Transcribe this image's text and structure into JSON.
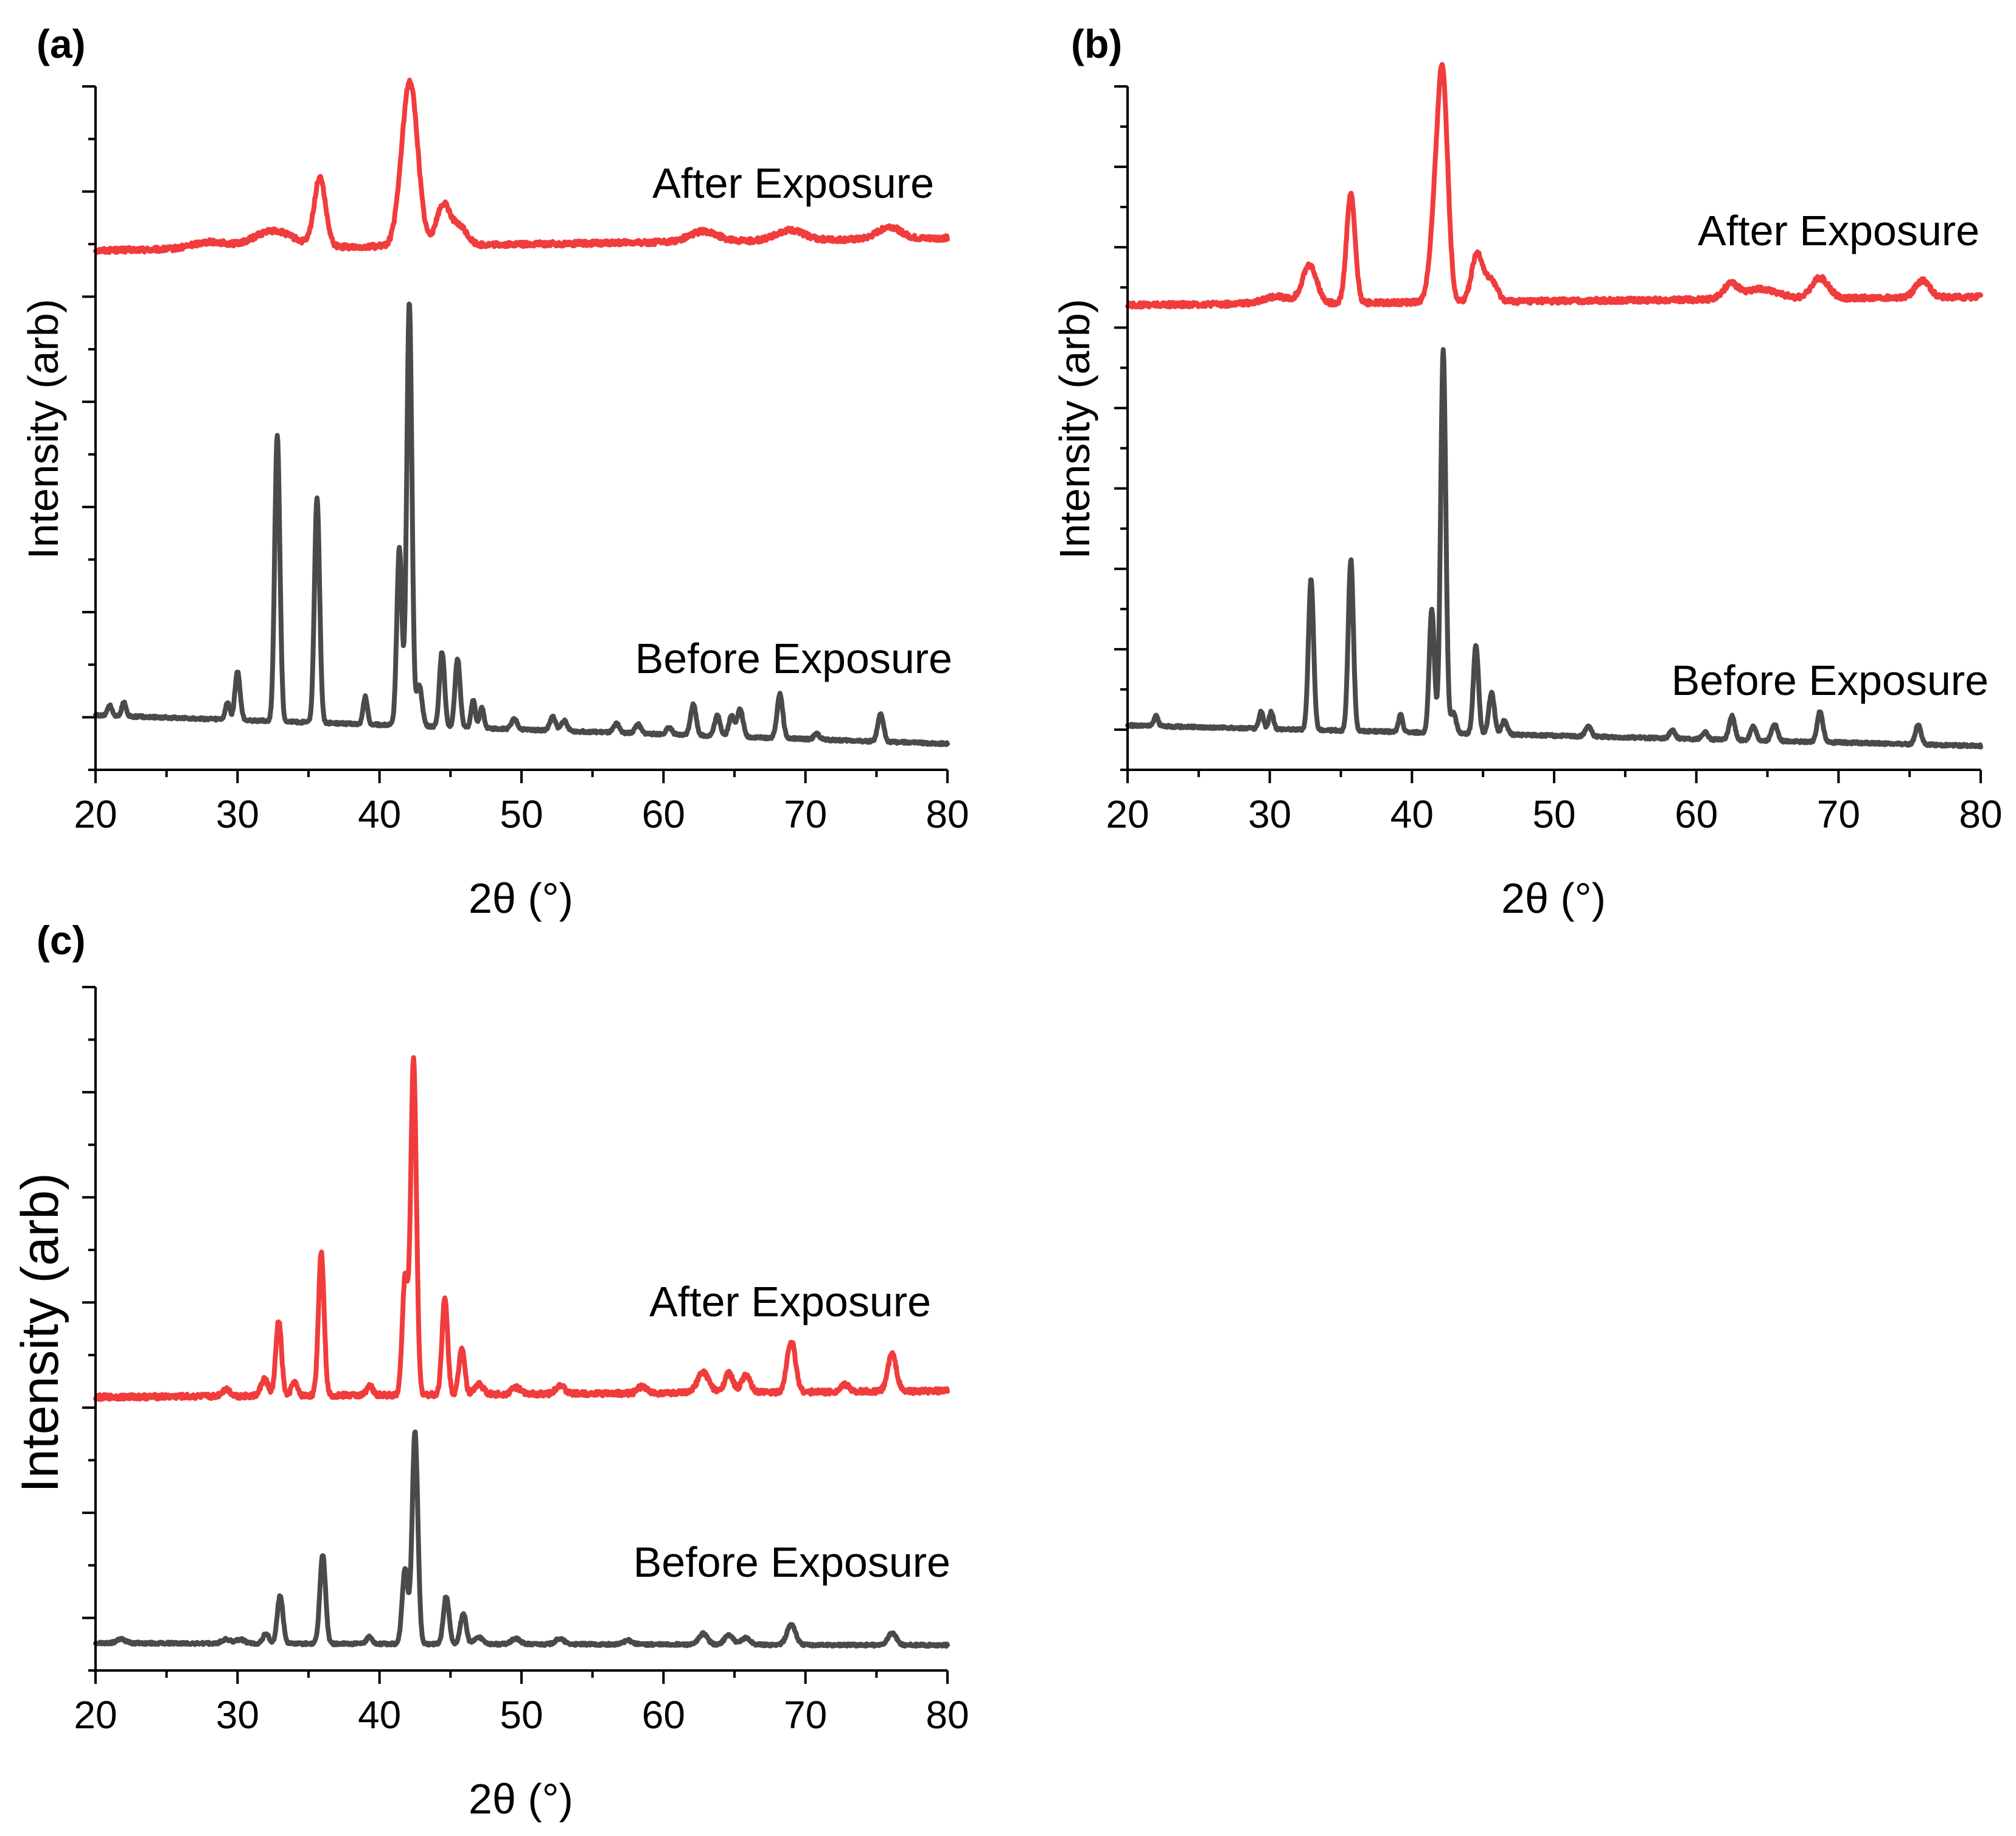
{
  "chart_data": [
    {
      "panel": "(a)",
      "type": "line",
      "xlabel": "2θ (°)",
      "ylabel": "Intensity (arb)",
      "xlim": [
        20,
        80
      ],
      "ylim": [
        0,
        100
      ],
      "xticks": [
        "20",
        "30",
        "40",
        "50",
        "60",
        "70",
        "80"
      ],
      "series": [
        {
          "name": "After Exposure",
          "color": "#f03c3c",
          "offset": 76,
          "slope": 0.03,
          "peaks": [
            [
              28,
              1.0,
              1.2
            ],
            [
              32.5,
              2.5,
              1.4
            ],
            [
              35.8,
              10,
              0.4
            ],
            [
              41.8,
              10,
              0.5
            ],
            [
              42.3,
              17,
              0.5
            ],
            [
              44.5,
              6,
              0.5
            ],
            [
              45.7,
              2.5,
              0.5
            ],
            [
              62.8,
              1.5,
              1.0
            ],
            [
              68.9,
              1.5,
              1.0
            ],
            [
              75.9,
              1.8,
              0.8
            ]
          ]
        },
        {
          "name": "Before Exposure",
          "color": "#4a4a4a",
          "offset": 8,
          "slope": -0.07,
          "peaks": [
            [
              21.0,
              1.5,
              0.15
            ],
            [
              22.0,
              2.0,
              0.15
            ],
            [
              29.3,
              2.5,
              0.15
            ],
            [
              30.0,
              7,
              0.18
            ],
            [
              32.8,
              42,
              0.18
            ],
            [
              35.6,
              33,
              0.18
            ],
            [
              39.0,
              4,
              0.15
            ],
            [
              41.4,
              26,
              0.18
            ],
            [
              42.1,
              62,
              0.18
            ],
            [
              42.8,
              6,
              0.2
            ],
            [
              44.4,
              11,
              0.18
            ],
            [
              45.5,
              10,
              0.18
            ],
            [
              46.6,
              4,
              0.15
            ],
            [
              47.2,
              3,
              0.15
            ],
            [
              49.5,
              1.5,
              0.2
            ],
            [
              52.2,
              2.0,
              0.2
            ],
            [
              53.0,
              1.5,
              0.2
            ],
            [
              56.7,
              1.3,
              0.2
            ],
            [
              58.2,
              1.3,
              0.2
            ],
            [
              60.4,
              1.0,
              0.2
            ],
            [
              62.1,
              4.5,
              0.2
            ],
            [
              63.8,
              3.0,
              0.2
            ],
            [
              64.8,
              3.0,
              0.2
            ],
            [
              65.4,
              4.0,
              0.2
            ],
            [
              68.2,
              6.5,
              0.2
            ],
            [
              70.8,
              0.8,
              0.2
            ],
            [
              75.3,
              4.0,
              0.2
            ]
          ]
        }
      ]
    },
    {
      "panel": "(b)",
      "type": "line",
      "xlabel": "2θ (°)",
      "ylabel": "Intensity (arb)",
      "xlim": [
        20,
        80
      ],
      "ylim": [
        0,
        100
      ],
      "xticks": [
        "20",
        "30",
        "40",
        "50",
        "60",
        "70",
        "80"
      ],
      "series": [
        {
          "name": "After Exposure",
          "color": "#f03c3c",
          "offset": 68,
          "slope": 0.02,
          "peaks": [
            [
              30.5,
              1.0,
              1.0
            ],
            [
              32.8,
              5.5,
              0.5
            ],
            [
              35.7,
              16,
              0.3
            ],
            [
              41.7,
              13,
              0.4
            ],
            [
              42.2,
              28,
              0.35
            ],
            [
              44.6,
              7,
              0.4
            ],
            [
              45.6,
              3.0,
              0.4
            ],
            [
              62.4,
              2.0,
              0.5
            ],
            [
              64.5,
              1.5,
              1.2
            ],
            [
              68.7,
              3.0,
              0.6
            ],
            [
              75.9,
              2.5,
              0.5
            ]
          ]
        },
        {
          "name": "Before Exposure",
          "color": "#4a4a4a",
          "offset": 6.5,
          "slope": -0.05,
          "peaks": [
            [
              22.0,
              1.5,
              0.15
            ],
            [
              29.4,
              2.5,
              0.15
            ],
            [
              30.1,
              2.5,
              0.15
            ],
            [
              32.9,
              22,
              0.18
            ],
            [
              35.7,
              25,
              0.18
            ],
            [
              39.2,
              2.5,
              0.15
            ],
            [
              41.4,
              18,
              0.18
            ],
            [
              42.2,
              56,
              0.18
            ],
            [
              42.9,
              3.0,
              0.2
            ],
            [
              44.5,
              13,
              0.18
            ],
            [
              45.6,
              6.0,
              0.2
            ],
            [
              46.5,
              2.0,
              0.2
            ],
            [
              52.4,
              1.5,
              0.2
            ],
            [
              58.3,
              1.2,
              0.2
            ],
            [
              60.6,
              1.0,
              0.2
            ],
            [
              62.5,
              3.5,
              0.2
            ],
            [
              64.0,
              2.0,
              0.2
            ],
            [
              65.5,
              2.5,
              0.2
            ],
            [
              68.7,
              4.5,
              0.2
            ],
            [
              75.6,
              2.8,
              0.2
            ]
          ]
        }
      ]
    },
    {
      "panel": "(c)",
      "type": "line",
      "xlabel": "2θ (°)",
      "ylabel": "Intensity (arb)",
      "xlim": [
        20,
        80
      ],
      "ylim": [
        0,
        100
      ],
      "xticks": [
        "20",
        "30",
        "40",
        "50",
        "60",
        "70",
        "80"
      ],
      "series": [
        {
          "name": "After Exposure",
          "color": "#f03c3c",
          "offset": 40,
          "slope": 0.015,
          "peaks": [
            [
              29.2,
              1.0,
              0.3
            ],
            [
              31.9,
              2.5,
              0.25
            ],
            [
              32.9,
              11,
              0.2
            ],
            [
              34.0,
              2.0,
              0.2
            ],
            [
              35.9,
              21,
              0.2
            ],
            [
              39.3,
              1.5,
              0.2
            ],
            [
              41.8,
              17,
              0.2
            ],
            [
              42.4,
              49,
              0.2
            ],
            [
              44.6,
              14,
              0.2
            ],
            [
              45.8,
              7,
              0.2
            ],
            [
              47.0,
              1.5,
              0.3
            ],
            [
              49.6,
              1.0,
              0.3
            ],
            [
              52.7,
              1.3,
              0.3
            ],
            [
              58.5,
              1.0,
              0.3
            ],
            [
              62.8,
              3.0,
              0.4
            ],
            [
              64.6,
              2.8,
              0.3
            ],
            [
              65.8,
              2.5,
              0.3
            ],
            [
              69.0,
              7.5,
              0.3
            ],
            [
              72.8,
              1.0,
              0.3
            ],
            [
              76.1,
              5.5,
              0.3
            ]
          ]
        },
        {
          "name": "Before Exposure",
          "color": "#4a4a4a",
          "offset": 4,
          "slope": -0.005,
          "peaks": [
            [
              21.8,
              0.6,
              0.3
            ],
            [
              29.2,
              0.6,
              0.3
            ],
            [
              30.2,
              0.6,
              0.3
            ],
            [
              32.0,
              1.5,
              0.2
            ],
            [
              33.0,
              7.0,
              0.2
            ],
            [
              36.0,
              13,
              0.2
            ],
            [
              39.3,
              1.0,
              0.2
            ],
            [
              41.8,
              11,
              0.2
            ],
            [
              42.5,
              31,
              0.2
            ],
            [
              44.7,
              7.0,
              0.2
            ],
            [
              45.9,
              4.5,
              0.2
            ],
            [
              47.0,
              1.0,
              0.3
            ],
            [
              49.6,
              0.8,
              0.3
            ],
            [
              52.7,
              0.8,
              0.3
            ],
            [
              57.5,
              0.6,
              0.3
            ],
            [
              62.8,
              1.6,
              0.3
            ],
            [
              64.6,
              1.4,
              0.3
            ],
            [
              65.8,
              1.0,
              0.3
            ],
            [
              69.0,
              3.0,
              0.3
            ],
            [
              76.1,
              1.7,
              0.3
            ]
          ]
        }
      ]
    }
  ]
}
